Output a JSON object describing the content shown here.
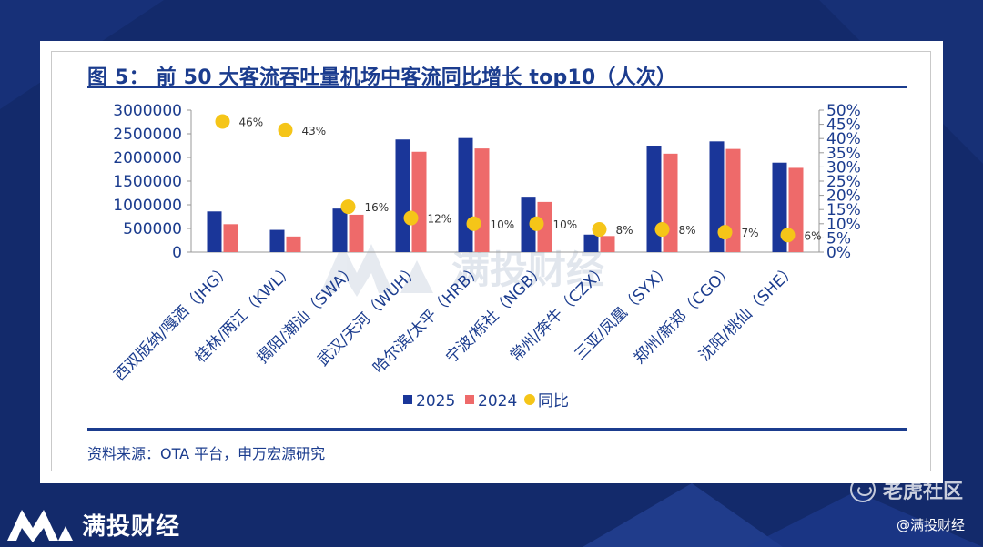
{
  "title": "图 5： 前 50 大客流吞吐量机场中客流同比增长 top10（人次）",
  "source": "资料来源：OTA 平台，申万宏源研究",
  "watermark": "满投财经",
  "brand": {
    "name": "满投财经",
    "community": "老虎社区",
    "handle": "@满投财经"
  },
  "colors": {
    "background": "#132a6b",
    "series_2025": "#1a3699",
    "series_2024": "#ee6a6a",
    "yoy": "#f5c518",
    "title": "#1b3c8e"
  },
  "chart_data": {
    "type": "bar",
    "categories": [
      "西双版纳/嘎洒（JHG）",
      "桂林/两江（KWL）",
      "揭阳/潮汕（SWA）",
      "武汉/天河（WUH）",
      "哈尔滨/太平（HRB）",
      "宁波/栎社（NGB）",
      "常州/奔牛（CZX）",
      "三亚/凤凰（SYX）",
      "郑州/新郑（CGO）",
      "沈阳/桃仙（SHE）"
    ],
    "series": [
      {
        "name": "2025",
        "type": "bar",
        "axis": "left",
        "values": [
          860000,
          470000,
          920000,
          2380000,
          2410000,
          1170000,
          370000,
          2250000,
          2340000,
          1890000
        ]
      },
      {
        "name": "2024",
        "type": "bar",
        "axis": "left",
        "values": [
          590000,
          330000,
          790000,
          2120000,
          2190000,
          1060000,
          340000,
          2080000,
          2180000,
          1780000
        ]
      },
      {
        "name": "同比",
        "type": "scatter",
        "axis": "right",
        "values": [
          46,
          43,
          16,
          12,
          10,
          10,
          8,
          8,
          7,
          6
        ],
        "labels": [
          "46%",
          "43%",
          "16%",
          "12%",
          "10%",
          "10%",
          "8%",
          "8%",
          "7%",
          "6%"
        ]
      }
    ],
    "left_axis": {
      "ylim": [
        0,
        3000000
      ],
      "ticks": [
        "0",
        "500000",
        "1000000",
        "1500000",
        "2000000",
        "2500000",
        "3000000"
      ]
    },
    "right_axis": {
      "ylim": [
        0,
        50
      ],
      "ticks": [
        "0%",
        "5%",
        "10%",
        "15%",
        "20%",
        "25%",
        "30%",
        "35%",
        "40%",
        "45%",
        "50%"
      ]
    },
    "legend": {
      "placement": "bottom",
      "entries": [
        "2025",
        "2024",
        "同比"
      ]
    },
    "grid": false
  }
}
